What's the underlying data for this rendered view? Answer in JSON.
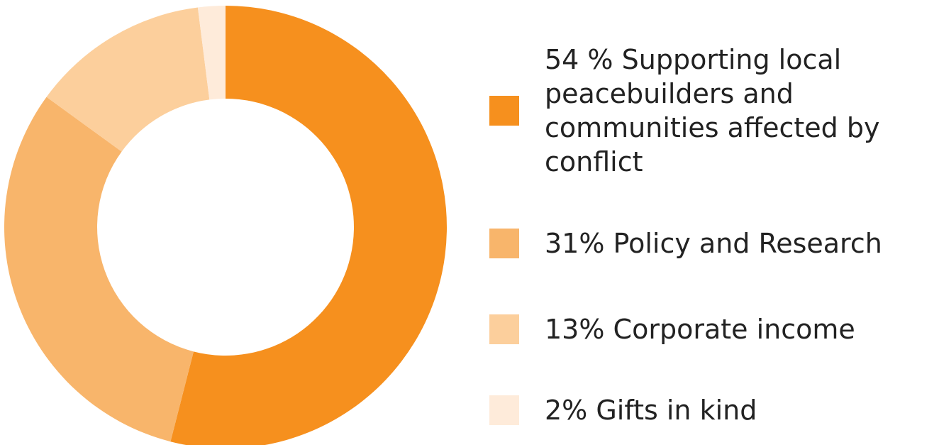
{
  "chart_data": {
    "type": "pie",
    "variant": "donut",
    "categories": [
      "54 % Supporting local peacebuilders and communities affected by conflict",
      "31% Policy and Research",
      "13% Corporate income",
      "2% Gifts in kind"
    ],
    "values": [
      54,
      31,
      13,
      2
    ],
    "colors": [
      "#F6901E",
      "#F8B56B",
      "#FCCF9C",
      "#FEEBDA"
    ],
    "legend_position": "right",
    "title": ""
  }
}
